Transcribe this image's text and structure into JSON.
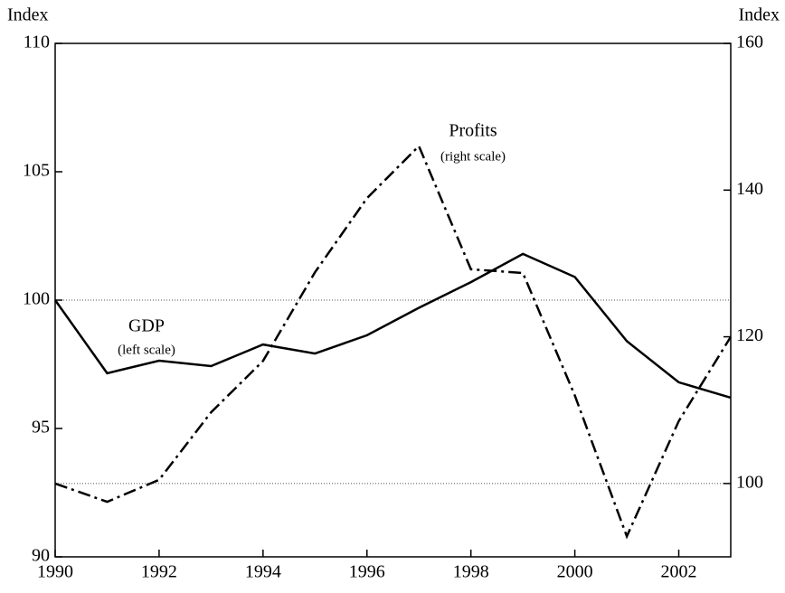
{
  "chart_data": {
    "type": "line",
    "y_label": "Index",
    "y2_label": "Index",
    "x": [
      1990,
      1991,
      1992,
      1993,
      1994,
      1995,
      1996,
      1997,
      1998,
      1999,
      2000,
      2001,
      2002,
      2003
    ],
    "xlim": [
      1990,
      2003
    ],
    "xticks": [
      1990,
      1992,
      1994,
      1996,
      1998,
      2000,
      2002
    ],
    "ylim": [
      90,
      110
    ],
    "yticks": [
      90,
      95,
      100,
      105,
      110
    ],
    "y2lim": [
      90,
      160
    ],
    "y2ticks": [
      100,
      120,
      140,
      160
    ],
    "reference_lines": [
      {
        "axis": "y",
        "value": 100
      },
      {
        "axis": "y2",
        "value": 100
      }
    ],
    "series": [
      {
        "name": "GDP",
        "note": "(left scale)",
        "color": "#000000",
        "dash": "solid",
        "axis": "y",
        "values": [
          100,
          97.15,
          97.64,
          97.43,
          98.27,
          97.92,
          98.63,
          99.7,
          100.7,
          101.8,
          100.9,
          98.4,
          96.8,
          96.2
        ]
      },
      {
        "name": "Profits",
        "note": "(right scale)",
        "color": "#000000",
        "dash": "dashdot",
        "axis": "y2",
        "values": [
          100,
          97.5,
          100.5,
          109.7,
          116.7,
          128.8,
          138.9,
          146,
          129.2,
          128.7,
          112,
          92.8,
          108.5,
          120
        ]
      }
    ]
  }
}
